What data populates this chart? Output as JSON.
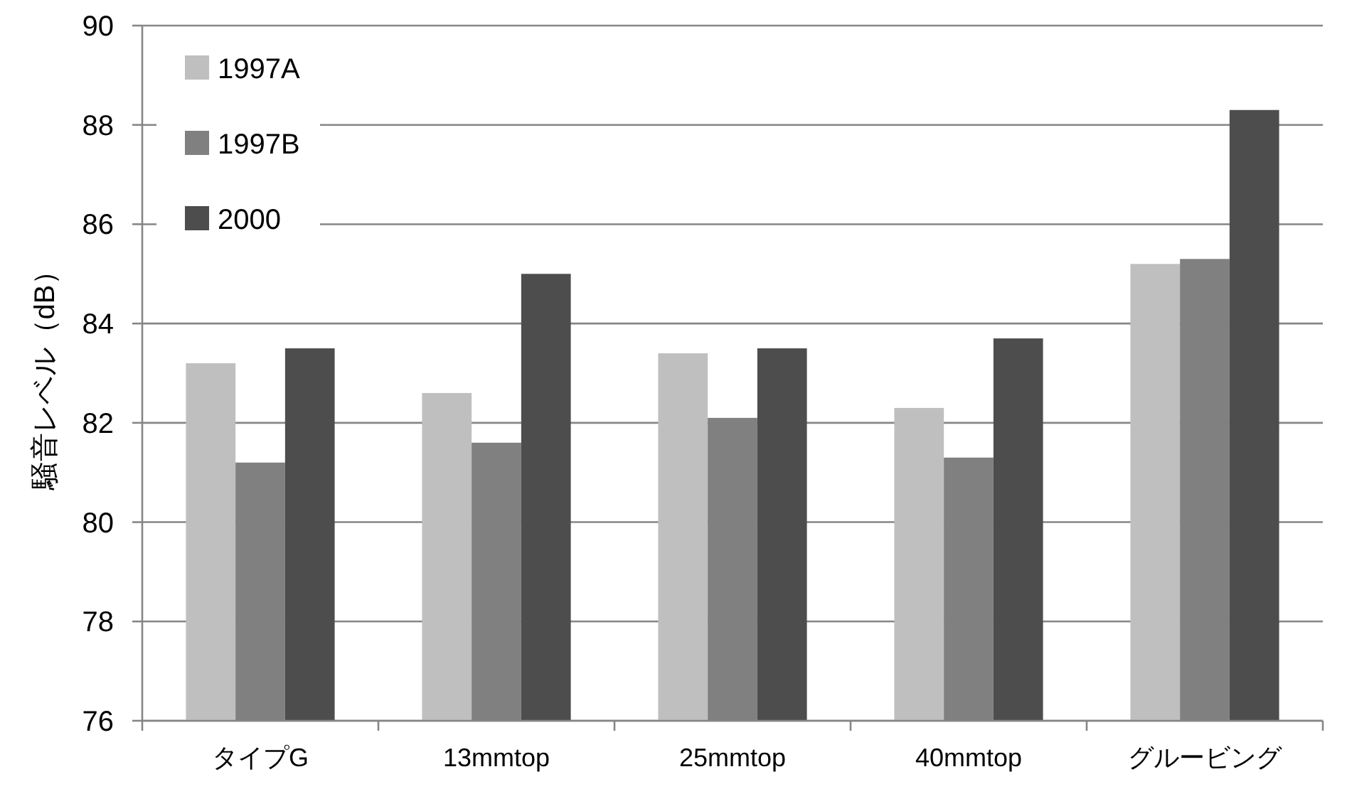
{
  "chart_data": {
    "type": "bar",
    "ylabel": "騒音レベル（dB）",
    "categories": [
      "タイプG",
      "13mmtop",
      "25mmtop",
      "40mmtop",
      "グルービング"
    ],
    "series": [
      {
        "name": "1997A",
        "color": "#bfbfbf",
        "values": [
          83.2,
          82.6,
          83.4,
          82.3,
          85.2
        ]
      },
      {
        "name": "1997B",
        "color": "#808080",
        "values": [
          81.2,
          81.6,
          82.1,
          81.3,
          85.3
        ]
      },
      {
        "name": "2000",
        "color": "#4d4d4d",
        "values": [
          83.5,
          85.0,
          83.5,
          83.7,
          88.3
        ]
      }
    ],
    "ylim": [
      76,
      90
    ],
    "yticks": [
      76,
      78,
      80,
      82,
      84,
      86,
      88,
      90
    ],
    "grid": "y",
    "legend": "top left"
  }
}
